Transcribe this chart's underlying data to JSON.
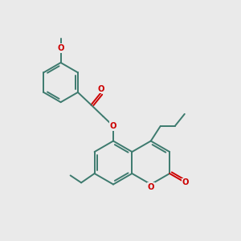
{
  "bg": "#eaeaea",
  "bc": "#3d7a6e",
  "oc": "#cc0000",
  "lw": 1.4,
  "fs": 7.2,
  "figsize": [
    3.0,
    3.0
  ],
  "dpi": 100,
  "xlim": [
    0,
    10
  ],
  "ylim": [
    0,
    10
  ]
}
